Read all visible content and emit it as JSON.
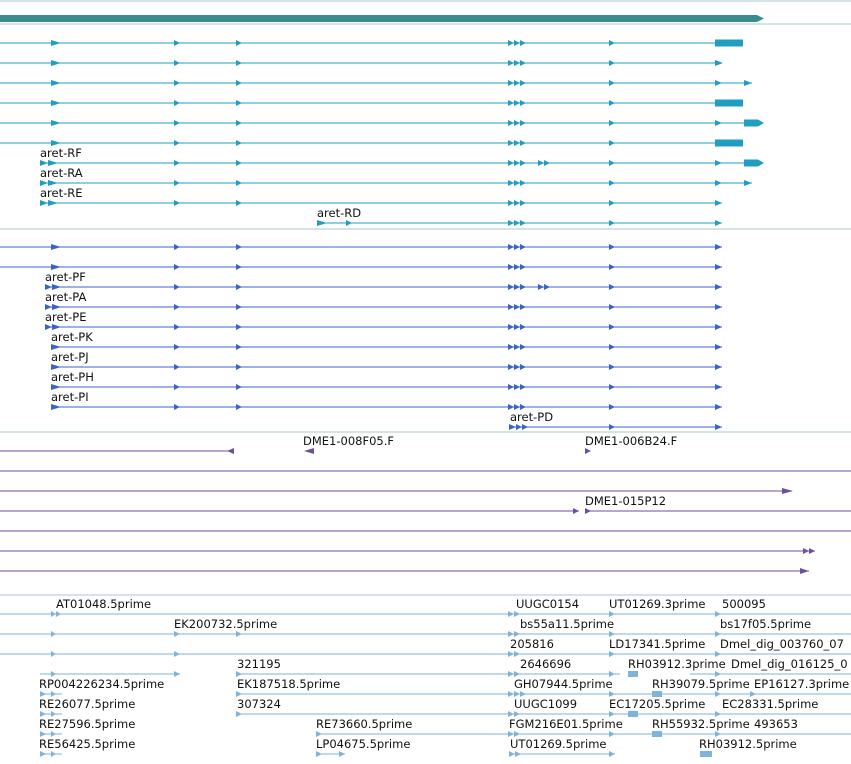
{
  "colors": {
    "background": "#ffffff",
    "separator": "#a8c8cc",
    "gene": "#3b8c8c",
    "transcript": "#1f9ec1",
    "protein": "#3a63c8",
    "primer": "#6b4fa0",
    "est": "#7fb3d9",
    "label_text": "#111111"
  },
  "gene_track": {
    "name": "gene-bar",
    "label": ""
  },
  "transcripts": [
    {
      "label": ""
    },
    {
      "label": ""
    },
    {
      "label": ""
    },
    {
      "label": ""
    },
    {
      "label": ""
    },
    {
      "label": ""
    },
    {
      "label": "aret-RF"
    },
    {
      "label": "aret-RA"
    },
    {
      "label": "aret-RE"
    },
    {
      "label": "aret-RD"
    }
  ],
  "proteins": [
    {
      "label": ""
    },
    {
      "label": ""
    },
    {
      "label": "aret-PF"
    },
    {
      "label": "aret-PA"
    },
    {
      "label": "aret-PE"
    },
    {
      "label": "aret-PK"
    },
    {
      "label": "aret-PJ"
    },
    {
      "label": "aret-PH"
    },
    {
      "label": "aret-PI"
    },
    {
      "label": "aret-PD"
    }
  ],
  "primers": [
    {
      "label": "DME1-008F05.F"
    },
    {
      "label": "DME1-006B24.F"
    },
    {
      "label": "DME1-015P12"
    }
  ],
  "ests": [
    {
      "label": "AT01048.5prime"
    },
    {
      "label": "UUGC0154"
    },
    {
      "label": "UT01269.3prime"
    },
    {
      "label": "500095"
    },
    {
      "label": "EK200732.5prime"
    },
    {
      "label": "bs55a11.5prime"
    },
    {
      "label": "bs17f05.5prime"
    },
    {
      "label": "205816"
    },
    {
      "label": "LD17341.5prime"
    },
    {
      "label": "Dmel_dig_003760_07"
    },
    {
      "label": "321195"
    },
    {
      "label": "2646696"
    },
    {
      "label": "RH03912.3prime"
    },
    {
      "label": "Dmel_dig_016125_0"
    },
    {
      "label": "RP004226234.5prime"
    },
    {
      "label": "EK187518.5prime"
    },
    {
      "label": "GH07944.5prime"
    },
    {
      "label": "RH39079.5prime"
    },
    {
      "label": "EP16127.3prime"
    },
    {
      "label": "RE26077.5prime"
    },
    {
      "label": "307324"
    },
    {
      "label": "UUGC1099"
    },
    {
      "label": "EC17205.5prime"
    },
    {
      "label": "EC28331.5prime"
    },
    {
      "label": "RE27596.5prime"
    },
    {
      "label": "RE73660.5prime"
    },
    {
      "label": "FGM216E01.5prime"
    },
    {
      "label": "RH55932.5prime"
    },
    {
      "label": "493653"
    },
    {
      "label": "RE56425.5prime"
    },
    {
      "label": "LP04675.5prime"
    },
    {
      "label": "UT01269.5prime"
    },
    {
      "label": "RH03912.5prime"
    }
  ]
}
